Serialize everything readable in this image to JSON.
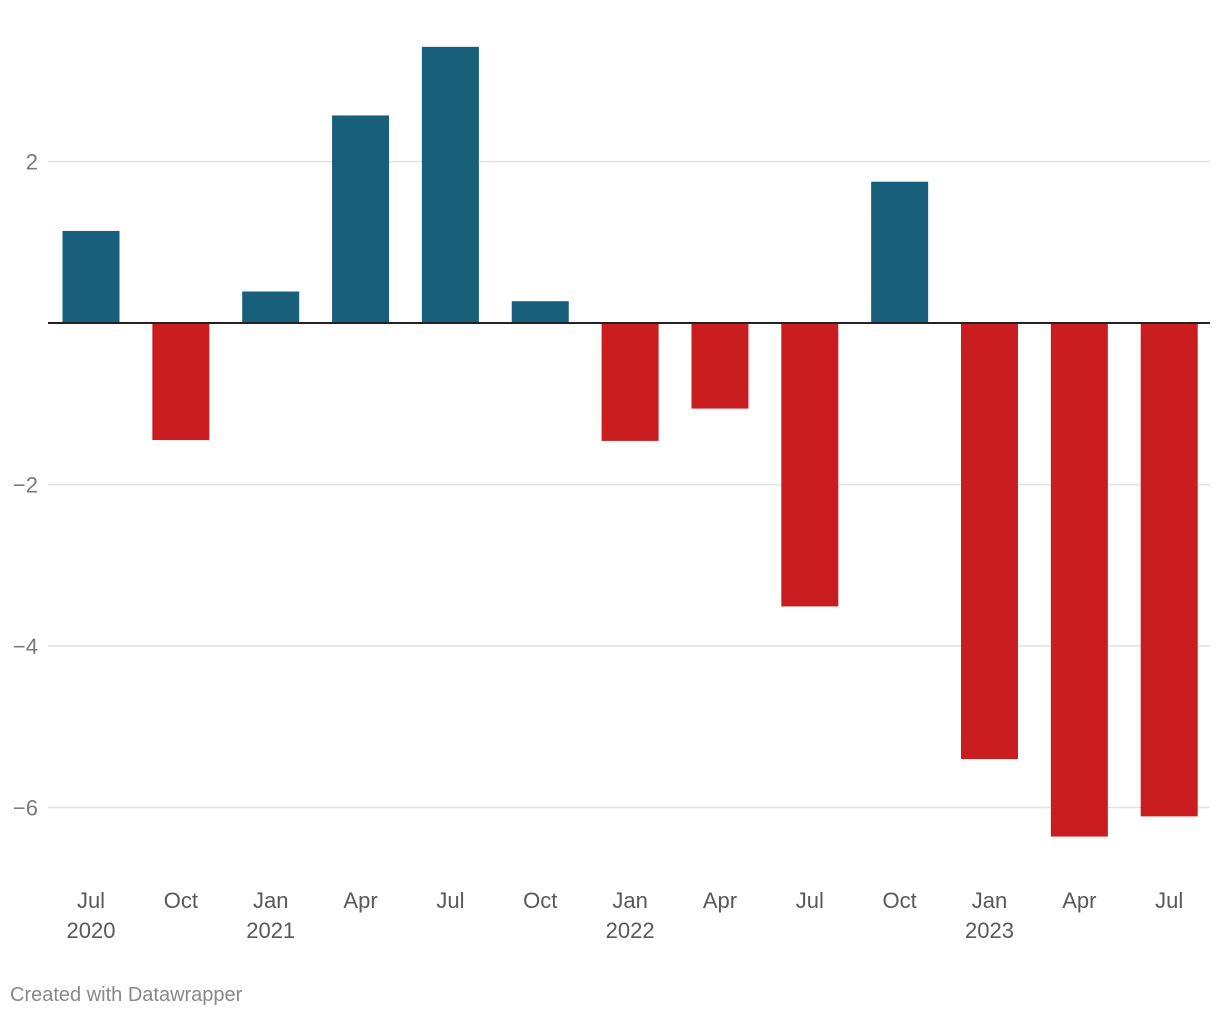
{
  "chart_data": {
    "type": "bar",
    "title": "",
    "xlabel": "",
    "ylabel": "",
    "categories": [
      "Jul 2020",
      "Oct 2020",
      "Jan 2021",
      "Apr 2021",
      "Jul 2021",
      "Oct 2021",
      "Jan 2022",
      "Apr 2022",
      "Jul 2022",
      "Oct 2022",
      "Jan 2023",
      "Apr 2023",
      "Jul 2023"
    ],
    "tick_labels": [
      {
        "month": "Jul",
        "year": "2020"
      },
      {
        "month": "Oct",
        "year": ""
      },
      {
        "month": "Jan",
        "year": "2021"
      },
      {
        "month": "Apr",
        "year": ""
      },
      {
        "month": "Jul",
        "year": ""
      },
      {
        "month": "Oct",
        "year": ""
      },
      {
        "month": "Jan",
        "year": "2022"
      },
      {
        "month": "Apr",
        "year": ""
      },
      {
        "month": "Jul",
        "year": ""
      },
      {
        "month": "Oct",
        "year": ""
      },
      {
        "month": "Jan",
        "year": "2023"
      },
      {
        "month": "Apr",
        "year": ""
      },
      {
        "month": "Jul",
        "year": ""
      }
    ],
    "values": [
      1.14,
      -1.45,
      0.39,
      2.57,
      3.42,
      0.27,
      -1.46,
      -1.06,
      -3.51,
      1.75,
      -5.4,
      -6.36,
      -6.11
    ],
    "y_ticks": [
      2,
      -2,
      -4,
      -6
    ],
    "y_tick_labels": [
      "2",
      "−2",
      "−4",
      "−6"
    ],
    "ylim": [
      -6.8,
      4.0
    ],
    "grid": true,
    "zero_line": true,
    "colors": {
      "positive": "#175f7b",
      "negative": "#c91d1f",
      "grid": "#e2e2e2",
      "axis": "#222222"
    }
  },
  "footer": {
    "credit": "Created with Datawrapper"
  }
}
